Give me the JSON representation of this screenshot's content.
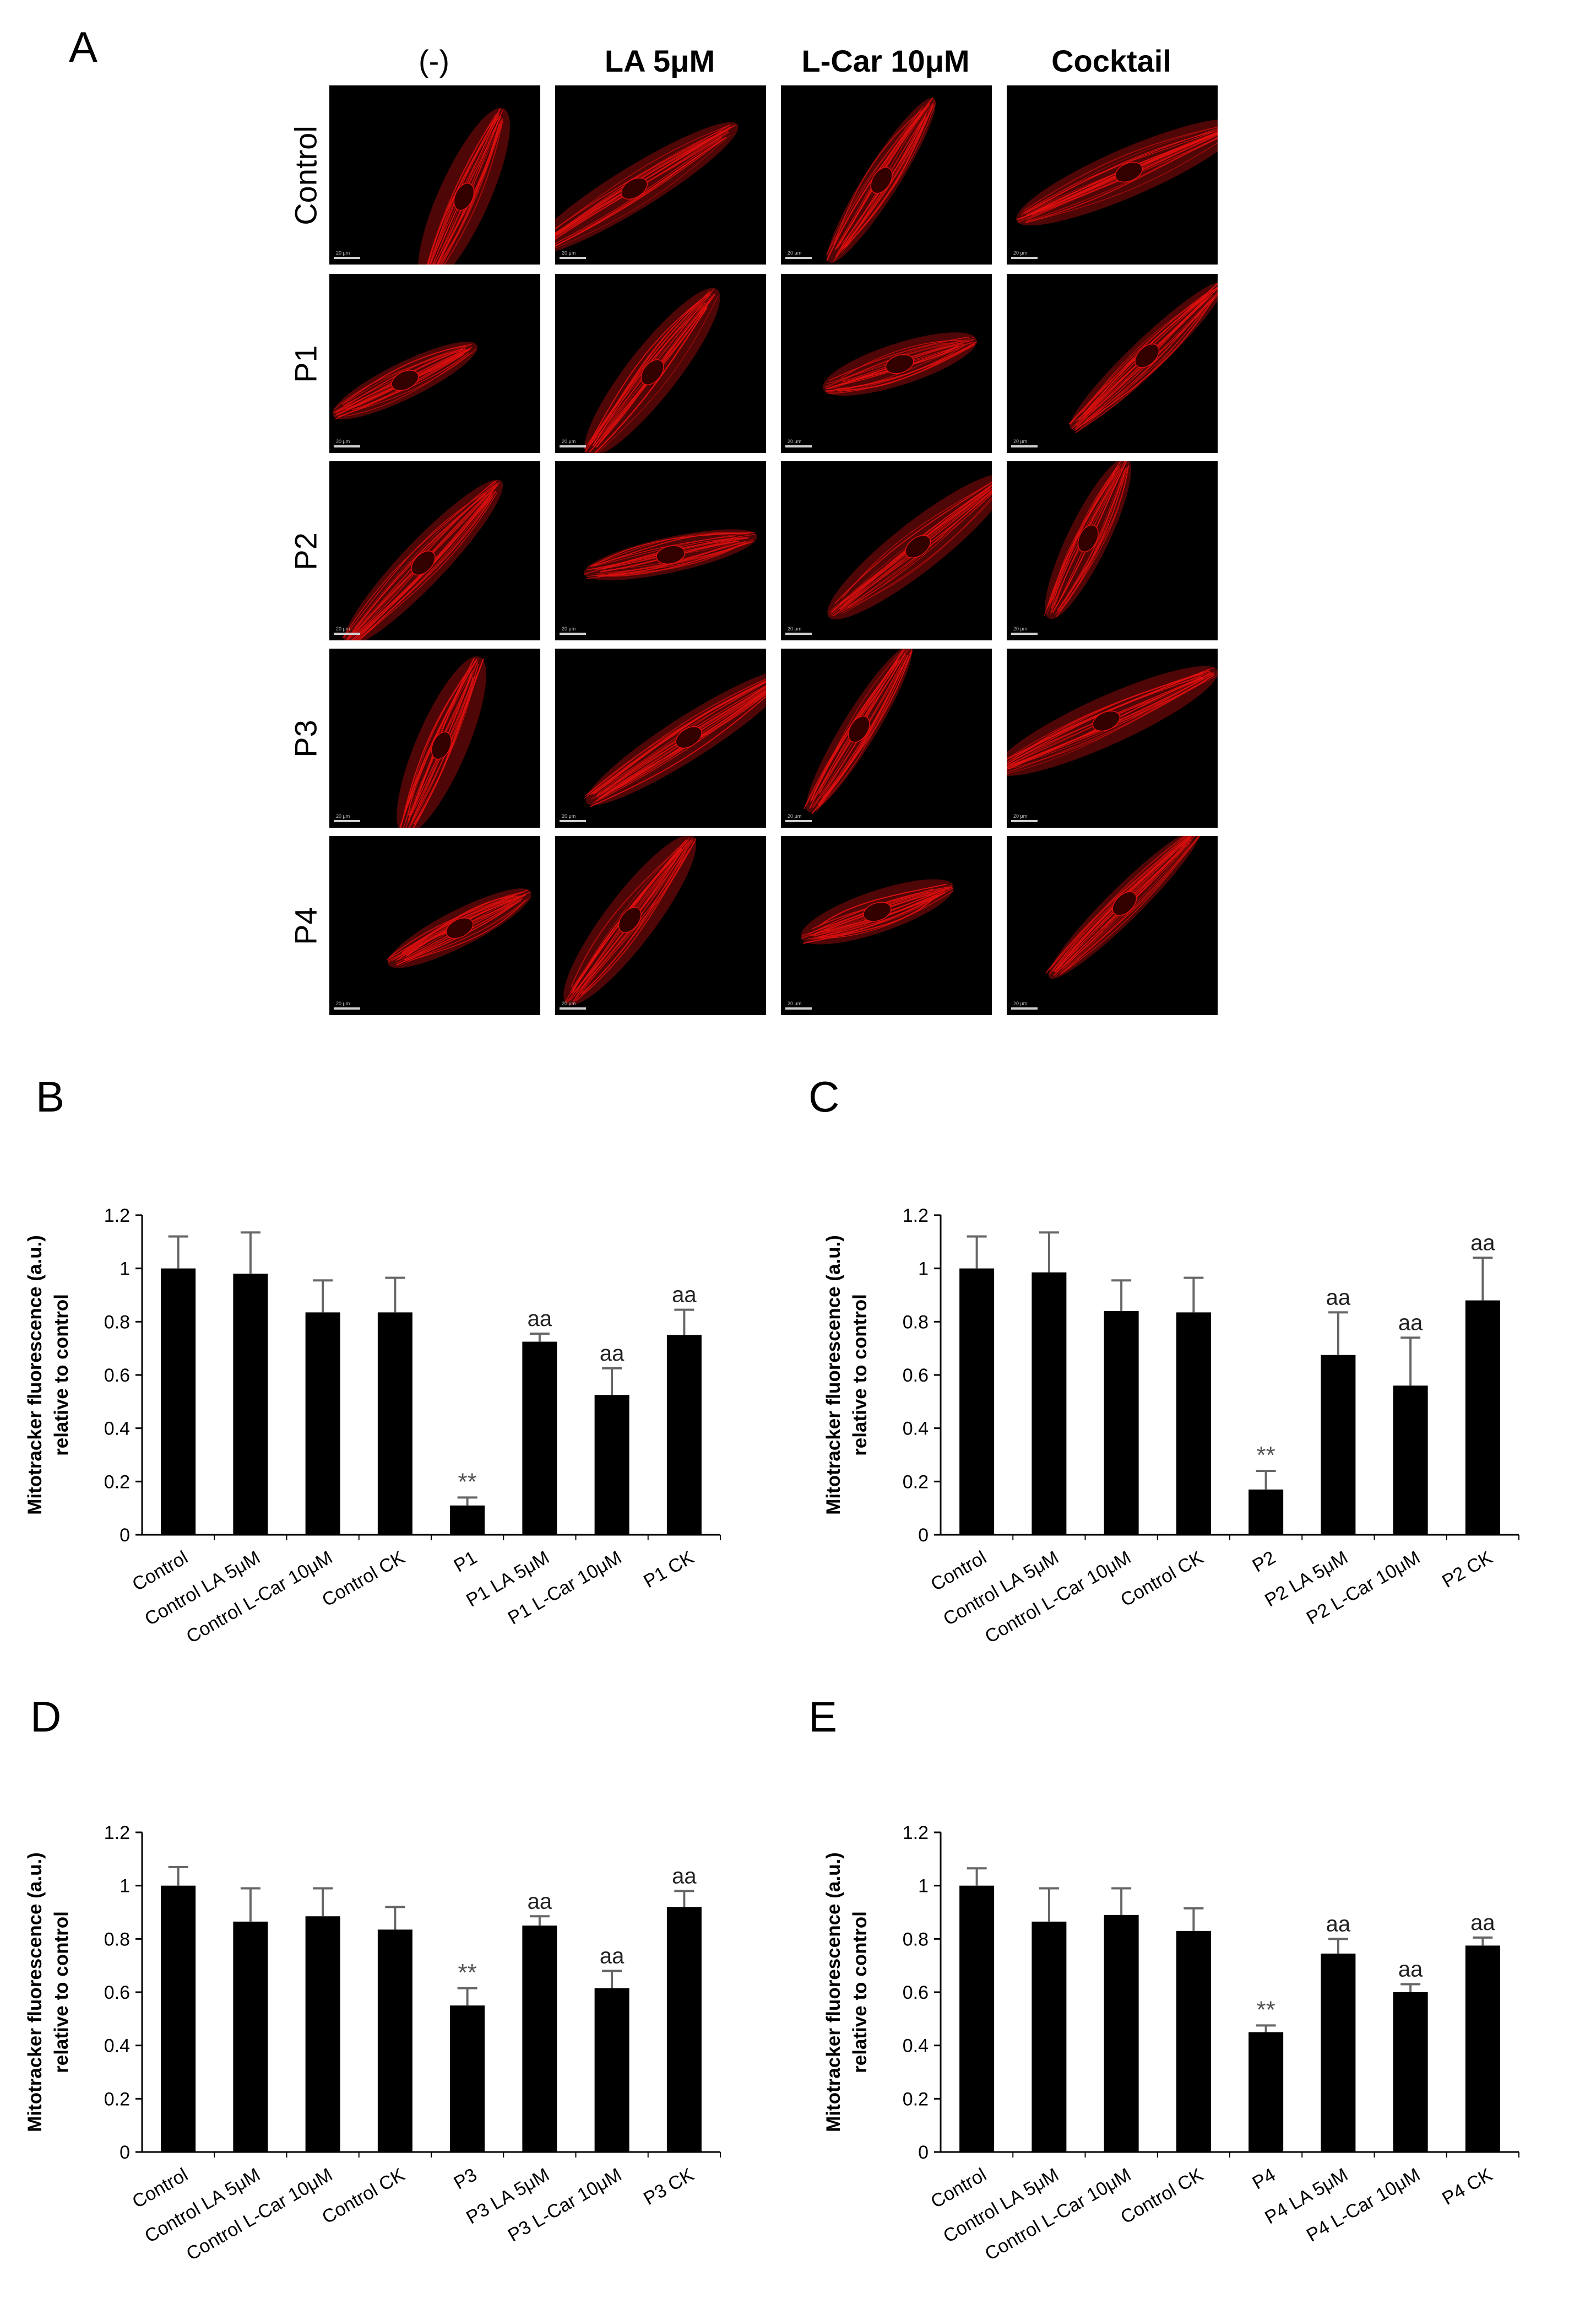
{
  "figure": {
    "panel_a_letter": "A",
    "column_headers": [
      "(-)",
      "LA 5μM",
      "L-Car 10μM",
      "Cocktail"
    ],
    "row_labels": [
      "Control",
      "P1",
      "P2",
      "P3",
      "P4"
    ],
    "scale_text": "20 μm",
    "micrograph_color": "#e01010"
  },
  "chart_data": [
    {
      "panel": "B",
      "type": "bar",
      "ylabel": [
        "Mitotracker fluorescence (a.u.)",
        "relative to control"
      ],
      "ylim": [
        0,
        1.2
      ],
      "yticks": [
        "0",
        "0.2",
        "0.4",
        "0.6",
        "0.8",
        "1",
        "1.2"
      ],
      "categories": [
        "Control",
        "Control LA 5μM",
        "Control L-Car 10μM",
        "Control CK",
        "P1",
        "P1 LA 5μM",
        "P1 L-Car 10μM",
        "P1 CK"
      ],
      "values": [
        1.0,
        0.98,
        0.835,
        0.835,
        0.11,
        0.725,
        0.525,
        0.75
      ],
      "errors": [
        0.12,
        0.155,
        0.12,
        0.13,
        0.03,
        0.03,
        0.1,
        0.095
      ],
      "annotations": [
        "",
        "",
        "",
        "",
        "**",
        "aa",
        "aa",
        "aa"
      ],
      "bar_color": "#000000"
    },
    {
      "panel": "C",
      "type": "bar",
      "ylabel": [
        "Mitotracker fluorescence (a.u.)",
        "relative to control"
      ],
      "ylim": [
        0,
        1.2
      ],
      "yticks": [
        "0",
        "0.2",
        "0.4",
        "0.6",
        "0.8",
        "1",
        "1.2"
      ],
      "categories": [
        "Control",
        "Control LA 5μM",
        "Control L-Car 10μM",
        "Control CK",
        "P2",
        "P2 LA 5μM",
        "P2 L-Car 10μM",
        "P2 CK"
      ],
      "values": [
        1.0,
        0.985,
        0.84,
        0.835,
        0.17,
        0.675,
        0.56,
        0.88
      ],
      "errors": [
        0.12,
        0.15,
        0.115,
        0.13,
        0.07,
        0.16,
        0.18,
        0.16
      ],
      "annotations": [
        "",
        "",
        "",
        "",
        "**",
        "aa",
        "aa",
        "aa"
      ],
      "bar_color": "#000000"
    },
    {
      "panel": "D",
      "type": "bar",
      "ylabel": [
        "Mitotracker fluorescence (a.u.)",
        "relative to control"
      ],
      "ylim": [
        0,
        1.2
      ],
      "yticks": [
        "0",
        "0.2",
        "0.4",
        "0.6",
        "0.8",
        "1",
        "1.2"
      ],
      "categories": [
        "Control",
        "Control LA 5μM",
        "Control L-Car 10μM",
        "Control CK",
        "P3",
        "P3 LA 5μM",
        "P3 L-Car 10μM",
        "P3 CK"
      ],
      "values": [
        1.0,
        0.865,
        0.885,
        0.835,
        0.55,
        0.85,
        0.615,
        0.92
      ],
      "errors": [
        0.07,
        0.125,
        0.105,
        0.085,
        0.065,
        0.035,
        0.065,
        0.06
      ],
      "annotations": [
        "",
        "",
        "",
        "",
        "**",
        "aa",
        "aa",
        "aa"
      ],
      "bar_color": "#000000"
    },
    {
      "panel": "E",
      "type": "bar",
      "ylabel": [
        "Mitotracker fluorescence (a.u.)",
        "relative to control"
      ],
      "ylim": [
        0,
        1.2
      ],
      "yticks": [
        "0",
        "0.2",
        "0.4",
        "0.6",
        "0.8",
        "1",
        "1.2"
      ],
      "categories": [
        "Control",
        "Control LA 5μM",
        "Control L-Car 10μM",
        "Control CK",
        "P4",
        "P4 LA 5μM",
        "P4 L-Car 10μM",
        "P4 CK"
      ],
      "values": [
        1.0,
        0.865,
        0.89,
        0.83,
        0.45,
        0.745,
        0.6,
        0.775
      ],
      "errors": [
        0.065,
        0.125,
        0.1,
        0.085,
        0.025,
        0.055,
        0.03,
        0.03
      ],
      "annotations": [
        "",
        "",
        "",
        "",
        "**",
        "aa",
        "aa",
        "aa"
      ],
      "bar_color": "#000000"
    }
  ]
}
